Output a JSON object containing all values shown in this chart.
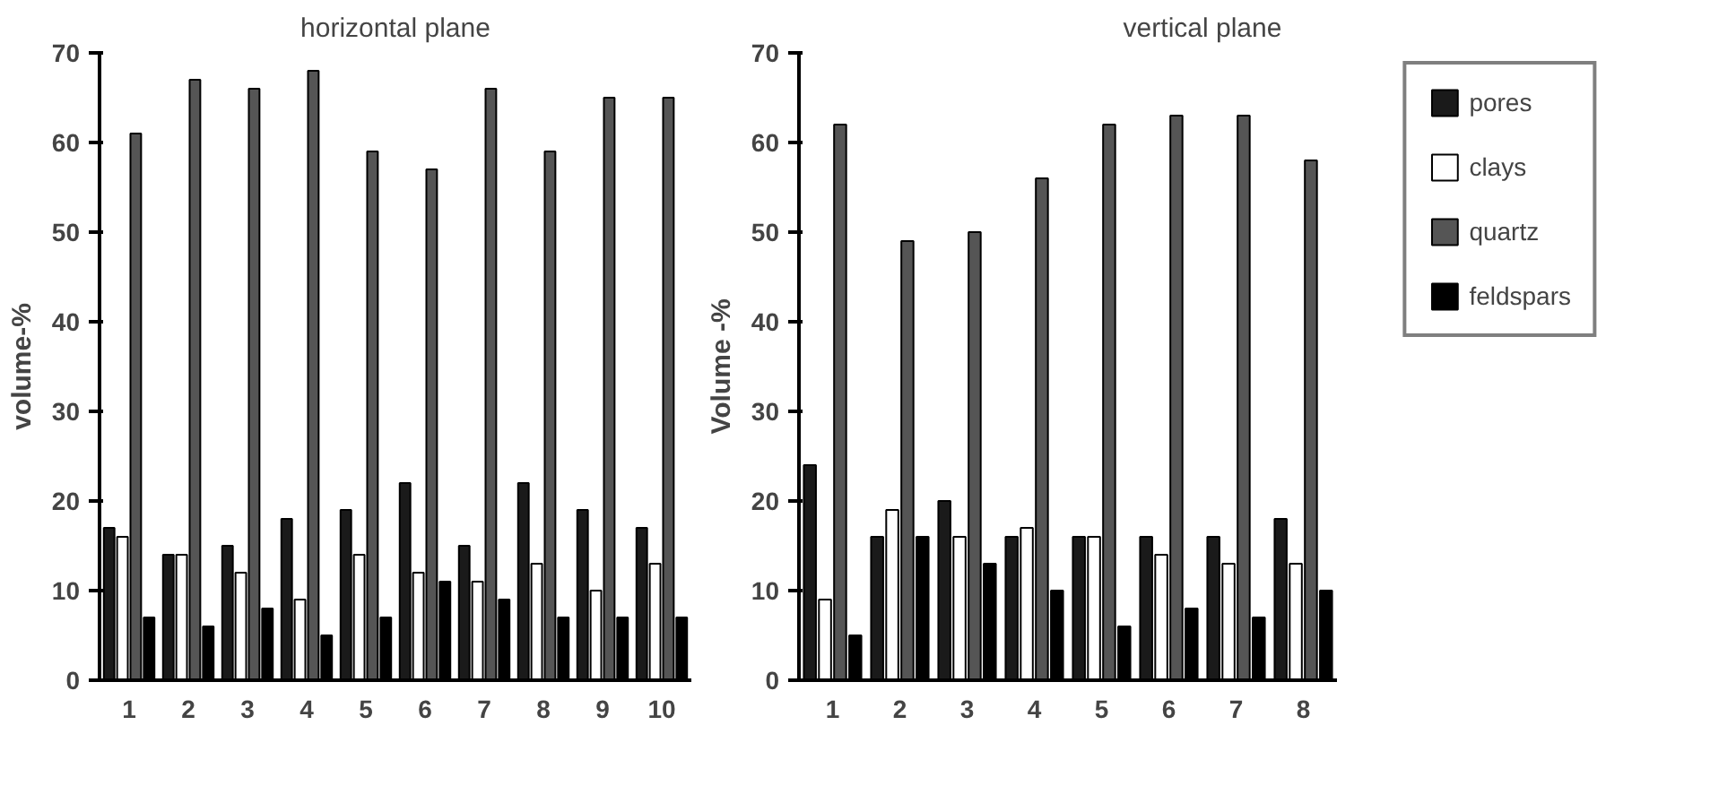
{
  "chart_data": [
    {
      "type": "bar",
      "title": "horizontal plane",
      "ylabel": "volume-%",
      "categories": [
        "1",
        "2",
        "3",
        "4",
        "5",
        "6",
        "7",
        "8",
        "9",
        "10"
      ],
      "ylim": [
        0,
        70
      ],
      "yticks": [
        0,
        10,
        20,
        30,
        40,
        50,
        60,
        70
      ],
      "grid": false,
      "legend": false,
      "series": [
        {
          "color": "#1a1a1a",
          "values": [
            17,
            14,
            15,
            18,
            19,
            22,
            15,
            22,
            19,
            17
          ]
        },
        {
          "color": "#ffffff",
          "values": [
            16,
            14,
            12,
            9,
            14,
            12,
            11,
            13,
            10,
            13
          ]
        },
        {
          "color": "#555555",
          "values": [
            61,
            67,
            66,
            68,
            59,
            57,
            66,
            59,
            65,
            65
          ]
        },
        {
          "color": "#000000",
          "values": [
            7,
            6,
            8,
            5,
            7,
            11,
            9,
            7,
            7,
            7
          ]
        }
      ]
    },
    {
      "type": "bar",
      "title": "vertical plane",
      "ylabel": "Volume -%",
      "categories": [
        "1",
        "2",
        "3",
        "4",
        "5",
        "6",
        "7",
        "8"
      ],
      "ylim": [
        0,
        70
      ],
      "yticks": [
        0,
        10,
        20,
        30,
        40,
        50,
        60,
        70
      ],
      "grid": false,
      "legend": "right",
      "series": [
        {
          "name": "pores",
          "color": "#1a1a1a",
          "values": [
            24,
            16,
            20,
            16,
            16,
            16,
            16,
            18
          ]
        },
        {
          "name": "clays",
          "color": "#ffffff",
          "values": [
            9,
            19,
            16,
            17,
            16,
            14,
            13,
            13
          ]
        },
        {
          "name": "quartz",
          "color": "#555555",
          "values": [
            62,
            49,
            50,
            56,
            62,
            63,
            63,
            58
          ]
        },
        {
          "name": "feldspars",
          "color": "#000000",
          "values": [
            5,
            16,
            13,
            10,
            6,
            8,
            7,
            10
          ]
        }
      ]
    }
  ]
}
